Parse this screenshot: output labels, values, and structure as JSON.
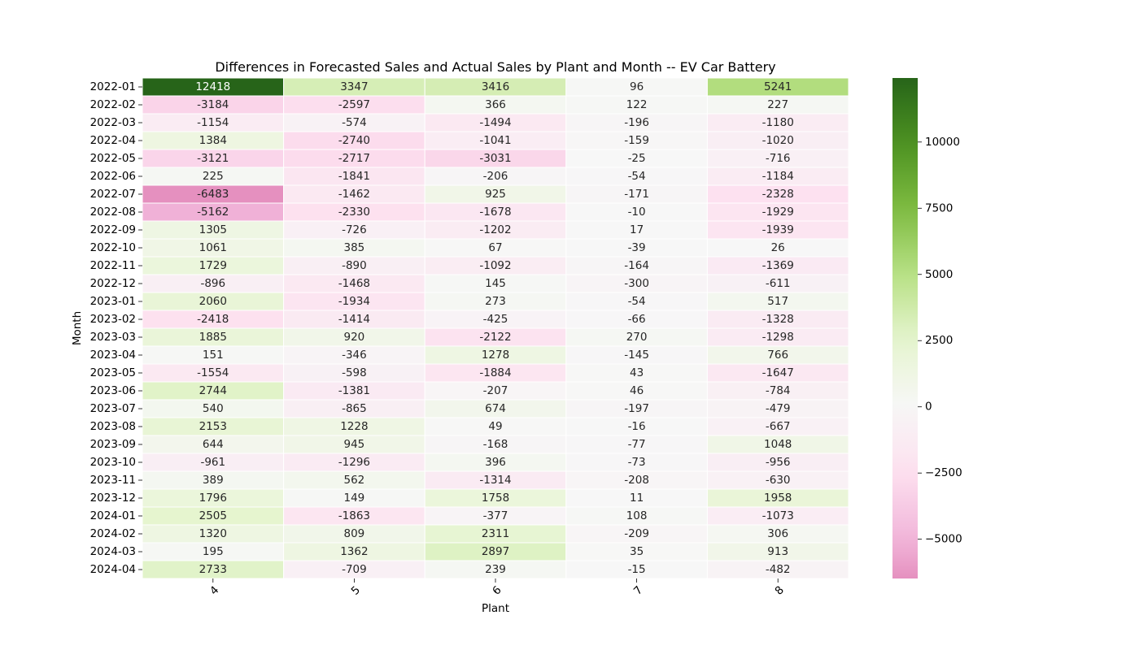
{
  "chart_data": {
    "type": "heatmap",
    "title": "Differences in Forecasted Sales and Actual Sales by Plant and Month -- EV Car Battery",
    "xlabel": "Plant",
    "ylabel": "Month",
    "columns": [
      "4",
      "5",
      "6",
      "7",
      "8"
    ],
    "rows": [
      "2022-01",
      "2022-02",
      "2022-03",
      "2022-04",
      "2022-05",
      "2022-06",
      "2022-07",
      "2022-08",
      "2022-09",
      "2022-10",
      "2022-11",
      "2022-12",
      "2023-01",
      "2023-02",
      "2023-03",
      "2023-04",
      "2023-05",
      "2023-06",
      "2023-07",
      "2023-08",
      "2023-09",
      "2023-10",
      "2023-11",
      "2023-12",
      "2024-01",
      "2024-02",
      "2024-03",
      "2024-04"
    ],
    "values": [
      [
        12418,
        3347,
        3416,
        96,
        5241
      ],
      [
        -3184,
        -2597,
        366,
        122,
        227
      ],
      [
        -1154,
        -574,
        -1494,
        -196,
        -1180
      ],
      [
        1384,
        -2740,
        -1041,
        -159,
        -1020
      ],
      [
        -3121,
        -2717,
        -3031,
        -25,
        -716
      ],
      [
        225,
        -1841,
        -206,
        -54,
        -1184
      ],
      [
        -6483,
        -1462,
        925,
        -171,
        -2328
      ],
      [
        -5162,
        -2330,
        -1678,
        -10,
        -1929
      ],
      [
        1305,
        -726,
        -1202,
        17,
        -1939
      ],
      [
        1061,
        385,
        67,
        -39,
        26
      ],
      [
        1729,
        -890,
        -1092,
        -164,
        -1369
      ],
      [
        -896,
        -1468,
        145,
        -300,
        -611
      ],
      [
        2060,
        -1934,
        273,
        -54,
        517
      ],
      [
        -2418,
        -1414,
        -425,
        -66,
        -1328
      ],
      [
        1885,
        920,
        -2122,
        270,
        -1298
      ],
      [
        151,
        -346,
        1278,
        -145,
        766
      ],
      [
        -1554,
        -598,
        -1884,
        43,
        -1647
      ],
      [
        2744,
        -1381,
        -207,
        46,
        -784
      ],
      [
        540,
        -865,
        674,
        -197,
        -479
      ],
      [
        2153,
        1228,
        49,
        -16,
        -667
      ],
      [
        644,
        945,
        -168,
        -77,
        1048
      ],
      [
        -961,
        -1296,
        396,
        -73,
        -956
      ],
      [
        389,
        562,
        -1314,
        -208,
        -630
      ],
      [
        1796,
        149,
        1758,
        11,
        1958
      ],
      [
        2505,
        -1863,
        -377,
        108,
        -1073
      ],
      [
        1320,
        809,
        2311,
        -209,
        306
      ],
      [
        195,
        1362,
        2897,
        35,
        913
      ],
      [
        2733,
        -709,
        239,
        -15,
        -482
      ]
    ],
    "colormap": "PiYG",
    "colorbar": {
      "min": -6483,
      "max": 12418,
      "center": 0,
      "ticks": [
        "10000",
        "7500",
        "5000",
        "2500",
        "0",
        "−2500",
        "−5000"
      ],
      "tick_values": [
        10000,
        7500,
        5000,
        2500,
        0,
        -2500,
        -5000
      ]
    },
    "grid": false,
    "cell_borders": "white"
  }
}
